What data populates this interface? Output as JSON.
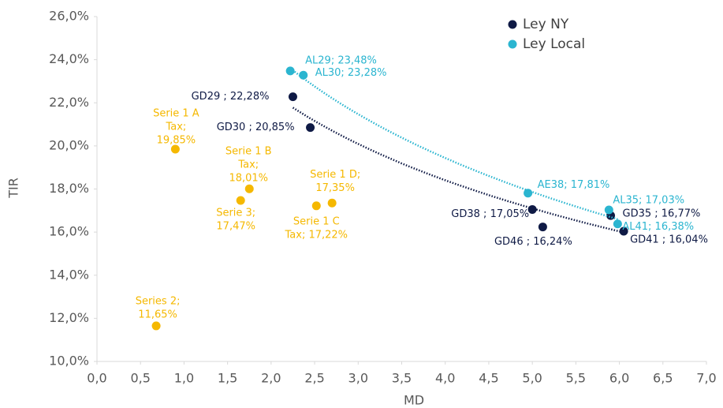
{
  "chart_data": {
    "type": "scatter",
    "x_label": "MD",
    "y_label": "TIR",
    "xlim": [
      0,
      7
    ],
    "ylim": [
      10,
      26
    ],
    "xticks": [
      {
        "value": 0,
        "label": "0,0"
      },
      {
        "value": 0.5,
        "label": "0,5"
      },
      {
        "value": 1,
        "label": "1,0"
      },
      {
        "value": 1.5,
        "label": "1,5"
      },
      {
        "value": 2,
        "label": "2,0"
      },
      {
        "value": 2.5,
        "label": "2,5"
      },
      {
        "value": 3,
        "label": "3,0"
      },
      {
        "value": 3.5,
        "label": "3,5"
      },
      {
        "value": 4,
        "label": "4,0"
      },
      {
        "value": 4.5,
        "label": "4,5"
      },
      {
        "value": 5,
        "label": "5,0"
      },
      {
        "value": 5.5,
        "label": "5,5"
      },
      {
        "value": 6,
        "label": "6,0"
      },
      {
        "value": 6.5,
        "label": "6,5"
      },
      {
        "value": 7,
        "label": "7,0"
      }
    ],
    "yticks": [
      {
        "value": 10,
        "label": "10,0%"
      },
      {
        "value": 12,
        "label": "12,0%"
      },
      {
        "value": 14,
        "label": "14,0%"
      },
      {
        "value": 16,
        "label": "16,0%"
      },
      {
        "value": 18,
        "label": "18,0%"
      },
      {
        "value": 20,
        "label": "20,0%"
      },
      {
        "value": 22,
        "label": "22,0%"
      },
      {
        "value": 24,
        "label": "24,0%"
      },
      {
        "value": 26,
        "label": "26,0%"
      }
    ],
    "legend": "top-right",
    "series": [
      {
        "name": "Ley NY",
        "color": "#0f1a45",
        "trendline": true,
        "x": [
          2.25,
          2.45,
          5.0,
          5.12,
          5.9,
          6.05
        ],
        "values": [
          22.28,
          20.85,
          17.05,
          16.24,
          16.77,
          16.04
        ],
        "labels": [
          [
            "GD29 ; 22,28%"
          ],
          [
            "GD30 ; 20,85%"
          ],
          [
            "GD38 ; 17,05%"
          ],
          [
            "GD46 ; 16,24%"
          ],
          [
            "GD35 ; 16,77%"
          ],
          [
            "GD41 ; 16,04%"
          ]
        ]
      },
      {
        "name": "Ley Local",
        "color": "#2bb5d0",
        "trendline": true,
        "x": [
          2.22,
          2.37,
          4.95,
          5.88,
          5.98
        ],
        "values": [
          23.48,
          23.28,
          17.81,
          17.03,
          16.38
        ],
        "labels": [
          [
            "AL29; 23,48%"
          ],
          [
            "AL30; 23,28%"
          ],
          [
            "AE38; 17,81%"
          ],
          [
            "AL35; 17,03%"
          ],
          [
            "AL41; 16,38%"
          ]
        ]
      },
      {
        "color": "#f5b800",
        "x": [
          0.9,
          1.75,
          1.65,
          2.7,
          2.52,
          0.68
        ],
        "values": [
          19.85,
          18.01,
          17.47,
          17.35,
          17.22,
          11.65
        ],
        "labels": [
          [
            "Serie 1 A",
            "Tax;",
            "19,85%"
          ],
          [
            "Serie 1 B",
            "Tax;",
            "18,01%"
          ],
          [
            "Serie 3;",
            "17,47%"
          ],
          [
            "Serie 1 D;",
            "17,35%"
          ],
          [
            "Serie 1 C",
            "Tax; 17,22%"
          ],
          [
            "Series 2;",
            "11,65%"
          ]
        ]
      }
    ]
  }
}
